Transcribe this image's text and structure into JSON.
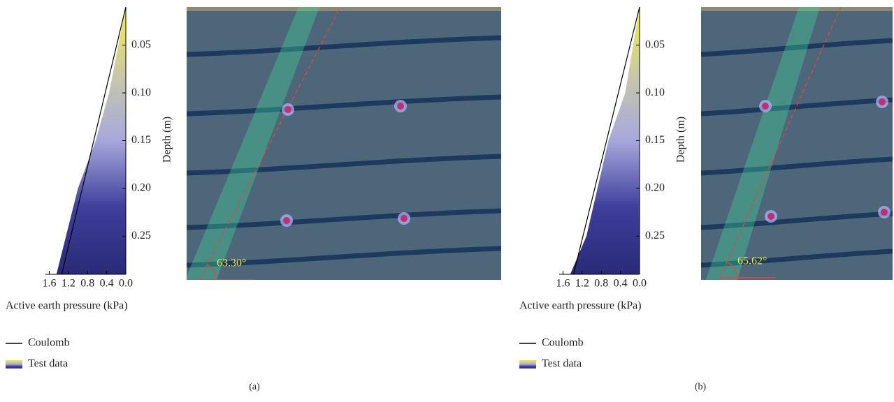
{
  "chart_data": [
    {
      "type": "area",
      "panel_label": "(a)",
      "annotation": "63.30°",
      "xlabel": "Active earth pressure (kPa)",
      "ylabel": "Depth (m)",
      "xlim": [
        1.68,
        0
      ],
      "xticks": [
        1.6,
        1.2,
        0.8,
        0.4,
        {
          "value": 0,
          "label": "0.0"
        }
      ],
      "ylim": [
        0.01,
        0.29
      ],
      "yticks": [
        0.05,
        {
          "value": 0.1,
          "label": "0.10"
        },
        0.15,
        {
          "value": 0.2,
          "label": "0.20"
        },
        0.25
      ],
      "series": [
        {
          "name": "Coulomb",
          "color": "#000000",
          "x": [
            0,
            1.34
          ],
          "y": [
            0.01,
            0.29
          ]
        },
        {
          "name": "Test data",
          "colormap": [
            "#f7f03a",
            "#c9c8a8",
            "#a6a8dc",
            "#3f3f9c",
            "#2a2a78"
          ],
          "x": [
            0,
            0.35,
            0.63,
            1.0,
            1.45
          ],
          "y": [
            0.01,
            0.1,
            0.15,
            0.2,
            0.29
          ]
        }
      ]
    },
    {
      "type": "area",
      "panel_label": "(b)",
      "annotation": "65.62°",
      "xlabel": "Active earth pressure (kPa)",
      "ylabel": "Depth (m)",
      "xlim": [
        1.68,
        0
      ],
      "xticks": [
        1.6,
        1.2,
        0.8,
        0.4,
        {
          "value": 0,
          "label": "0.0"
        }
      ],
      "ylim": [
        0.01,
        0.29
      ],
      "yticks": [
        0.05,
        {
          "value": 0.1,
          "label": "0.10"
        },
        0.15,
        {
          "value": 0.2,
          "label": "0.20"
        },
        0.25
      ],
      "series": [
        {
          "name": "Coulomb",
          "color": "#000000",
          "x": [
            0,
            1.38
          ],
          "y": [
            0.01,
            0.29
          ]
        },
        {
          "name": "Test data",
          "colormap": [
            "#f7f03a",
            "#c9c8a8",
            "#a6a8dc",
            "#3f3f9c",
            "#2a2a78"
          ],
          "x": [
            0,
            0.3,
            0.65,
            1.11,
            1.45
          ],
          "y": [
            0.01,
            0.1,
            0.15,
            0.25,
            0.29
          ]
        }
      ]
    }
  ]
}
